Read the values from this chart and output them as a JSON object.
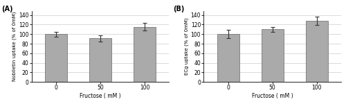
{
  "panel_A": {
    "label": "(A)",
    "categories": [
      "0",
      "50",
      "100"
    ],
    "values": [
      100,
      91,
      115
    ],
    "errors": [
      5,
      7,
      8
    ],
    "ylabel": "Nobiletin uptake (% of 0mM)",
    "xlabel": "Fructose ( mM )",
    "ylim": [
      0,
      148
    ],
    "yticks": [
      0,
      20,
      40,
      60,
      80,
      100,
      120,
      140
    ]
  },
  "panel_B": {
    "label": "(B)",
    "categories": [
      "0",
      "50",
      "100"
    ],
    "values": [
      100,
      110,
      128
    ],
    "errors": [
      9,
      5,
      9
    ],
    "ylabel": "ECg uptake (% of 0mM)",
    "xlabel": "Fructose ( mM )",
    "ylim": [
      0,
      148
    ],
    "yticks": [
      0,
      20,
      40,
      60,
      80,
      100,
      120,
      140
    ]
  },
  "bar_color": "#aaaaaa",
  "bar_edgecolor": "#666666",
  "background_color": "#ffffff",
  "bar_width": 0.5,
  "figsize": [
    5.0,
    1.5
  ],
  "dpi": 100
}
